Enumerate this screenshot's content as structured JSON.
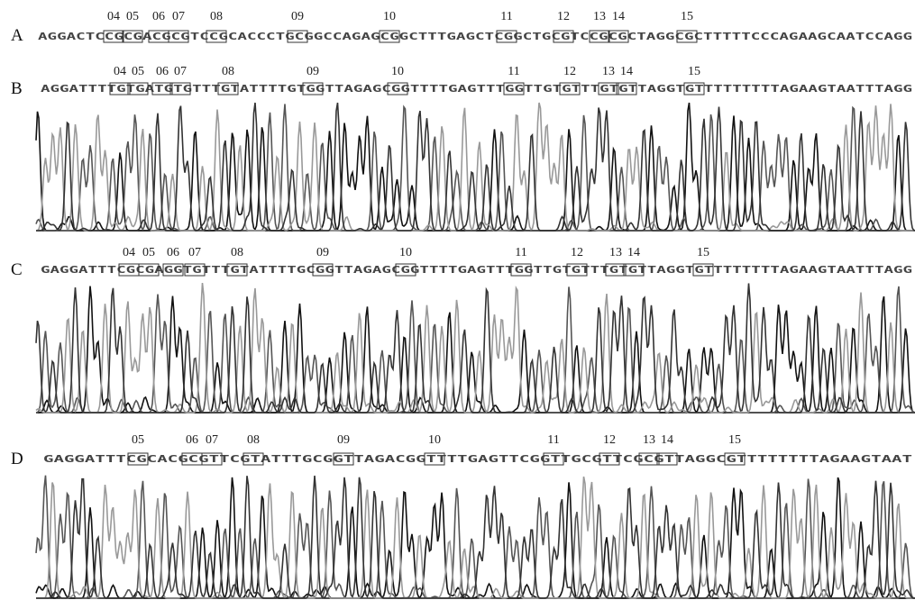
{
  "panels": [
    {
      "label": "A",
      "sequence": "AGGACTCCGCGACGCGTCCGCACCCTGCGGCCAGAGCGGCTTTGAGCTCGGCTGCGTCCGCGCTAGGCGCTTTTTCCCAGAAGCAATCCAGG",
      "sites": [
        "04",
        "05",
        "06",
        "07",
        "08",
        "09",
        "10",
        "11",
        "12",
        "13",
        "14",
        "15"
      ]
    },
    {
      "label": "B",
      "sequence": "AGGATTTTGTGATGTGTTTGTATTTTGTGGTTAGAGCGGTTTTGAGTTTGGTTGTGTTTGTGTTAGGTGTTTTTTTTTAGAAGTAATTTAGG",
      "sites": [
        "04",
        "05",
        "06",
        "07",
        "08",
        "09",
        "10",
        "11",
        "12",
        "13",
        "14",
        "15"
      ]
    },
    {
      "label": "C",
      "sequence": "GAGGATTTCGCGAGGTGTTTGTATTTTGCGGTTAGAGCGGTTTTGAGTTTGGTTGTGTTTGTGTTAGGTGTTTTTTTTAGAAGTAATTTAGG",
      "sites": [
        "04",
        "05",
        "06",
        "07",
        "08",
        "09",
        "10",
        "11",
        "12",
        "13",
        "14",
        "15"
      ]
    },
    {
      "label": "D",
      "sequence": "GAGGATTTCGCACGCGTTCGTATTTGCGGTTAGACGGTTTTGAGTTCGGTTGCGTTCGCGTTAGGCGTTTTTTTTAGAAGTAAT",
      "sites": [
        "05",
        "06",
        "07",
        "08",
        "09",
        "10",
        "11",
        "12",
        "13",
        "14",
        "15"
      ]
    }
  ]
}
